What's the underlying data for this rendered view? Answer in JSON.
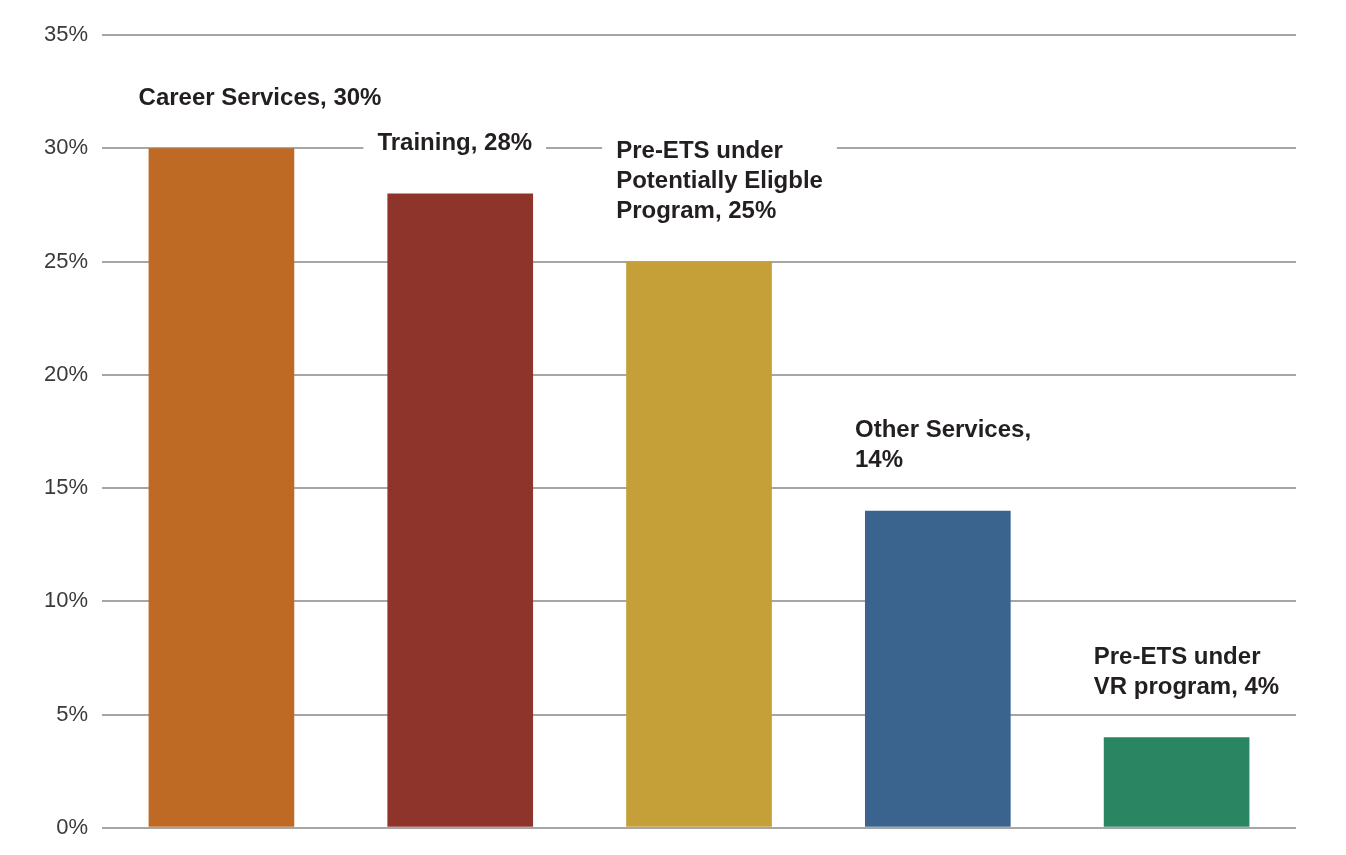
{
  "chart_data": {
    "type": "bar",
    "categories": [
      null,
      null,
      null,
      null,
      null
    ],
    "values": [
      30,
      28,
      25,
      14,
      4
    ],
    "colors": [
      "#bf6a24",
      "#8f342b",
      "#c59f38",
      "#3a648d",
      "#2a8562"
    ],
    "value_labels": [
      "Career Services, 30%",
      "Training, 28%",
      "Pre-ETS under\nPotentially Eligble\nProgram, 25%",
      "Other Services,\n14%",
      "Pre-ETS under\nVR program, 4%"
    ],
    "ylim": [
      0,
      35
    ],
    "yticks": [
      {
        "value": 0,
        "label": "0%"
      },
      {
        "value": 5,
        "label": "5%"
      },
      {
        "value": 10,
        "label": "10%"
      },
      {
        "value": 15,
        "label": "15%"
      },
      {
        "value": 20,
        "label": "20%"
      },
      {
        "value": 25,
        "label": "25%"
      },
      {
        "value": 30,
        "label": "30%"
      },
      {
        "value": 35,
        "label": "35%"
      }
    ],
    "grid": "y",
    "legend": false
  }
}
